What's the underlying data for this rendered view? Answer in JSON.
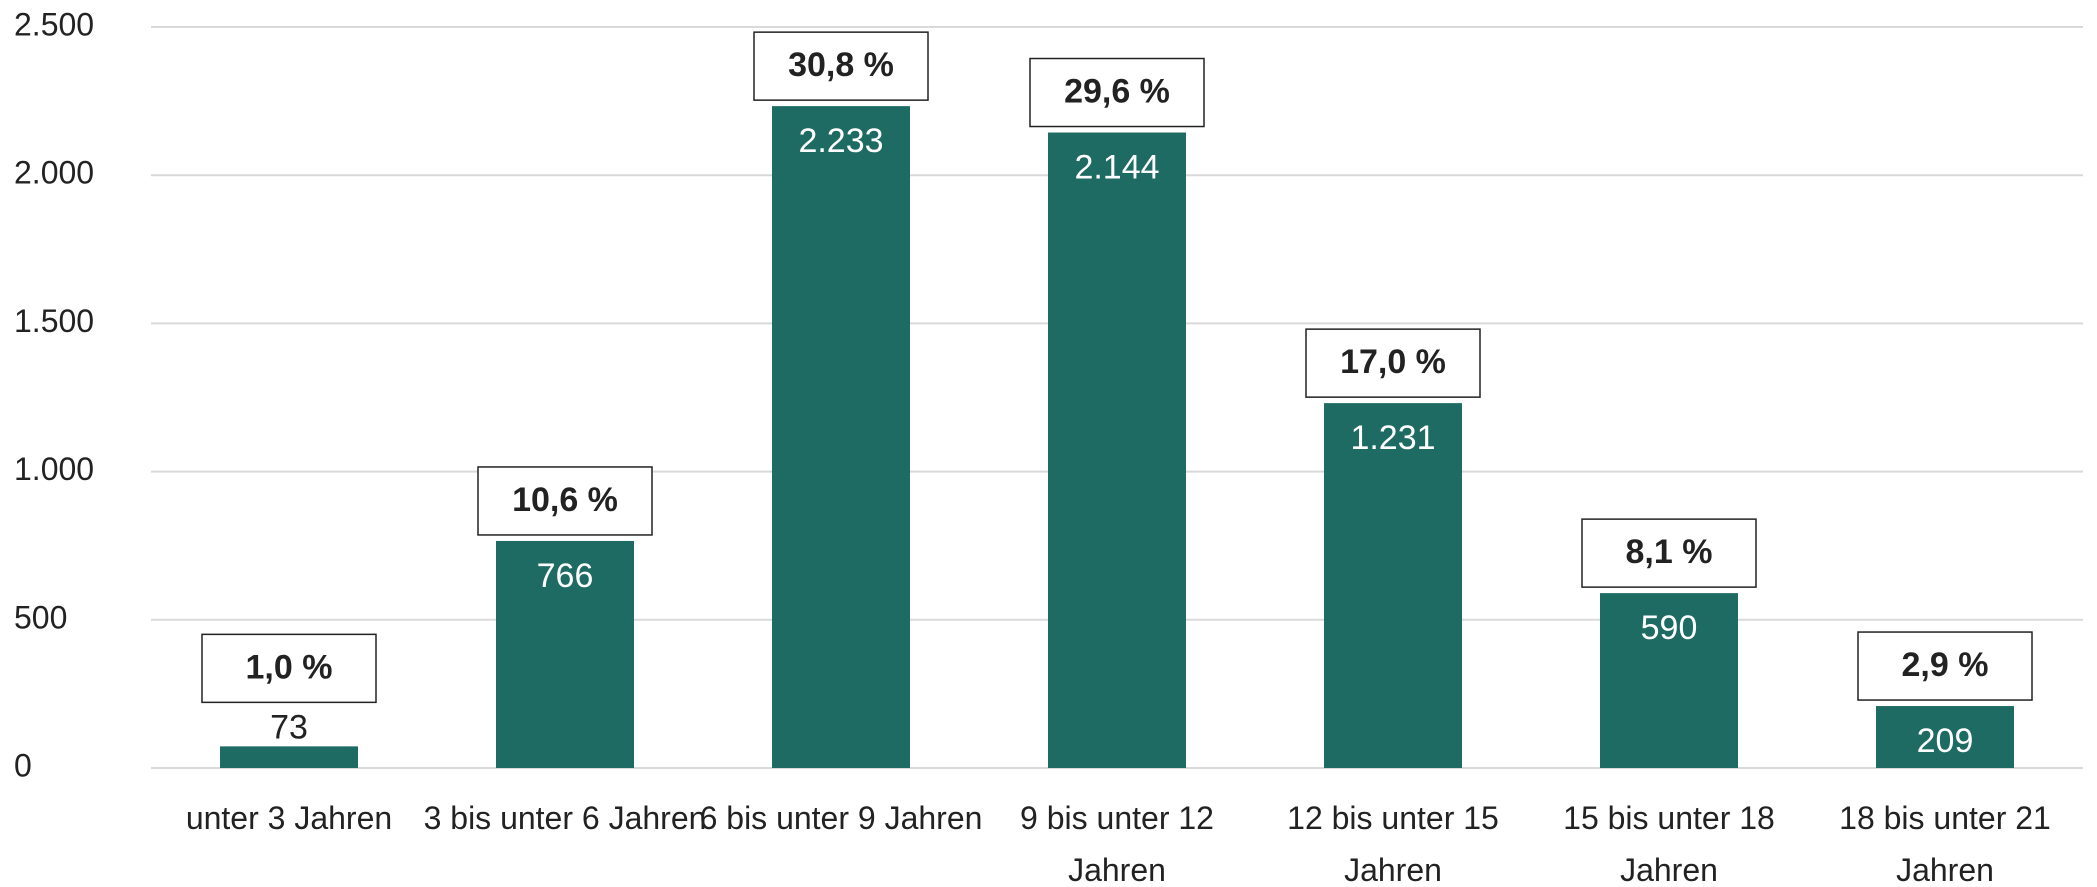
{
  "chart_data": {
    "type": "bar",
    "categories": [
      "unter 3 Jahren",
      "3 bis unter 6 Jahren",
      "6 bis unter 9 Jahren",
      "9 bis unter 12 Jahren",
      "12 bis unter 15 Jahren",
      "15 bis unter 18 Jahren",
      "18 bis unter 21 Jahren"
    ],
    "values": [
      73,
      766,
      2233,
      2144,
      1231,
      590,
      209
    ],
    "value_labels": [
      "73",
      "766",
      "2.233",
      "2.144",
      "1.231",
      "590",
      "209"
    ],
    "shares": [
      1.0,
      10.6,
      30.8,
      29.6,
      17.0,
      8.1,
      2.9
    ],
    "share_labels": [
      "1,0 %",
      "10,6 %",
      "30,8 %",
      "29,6 %",
      "17,0 %",
      "8,1 %",
      "2,9 %"
    ],
    "color": "#1e6b64",
    "ylim": [
      0,
      2500
    ],
    "yticks": [
      0,
      500,
      {
        "value": 1000,
        "label": "1.000"
      },
      {
        "value": 1500,
        "label": "1.500"
      },
      {
        "value": 2000,
        "label": "2.000"
      },
      {
        "value": 2500,
        "label": "2.500"
      }
    ],
    "grid": true
  }
}
